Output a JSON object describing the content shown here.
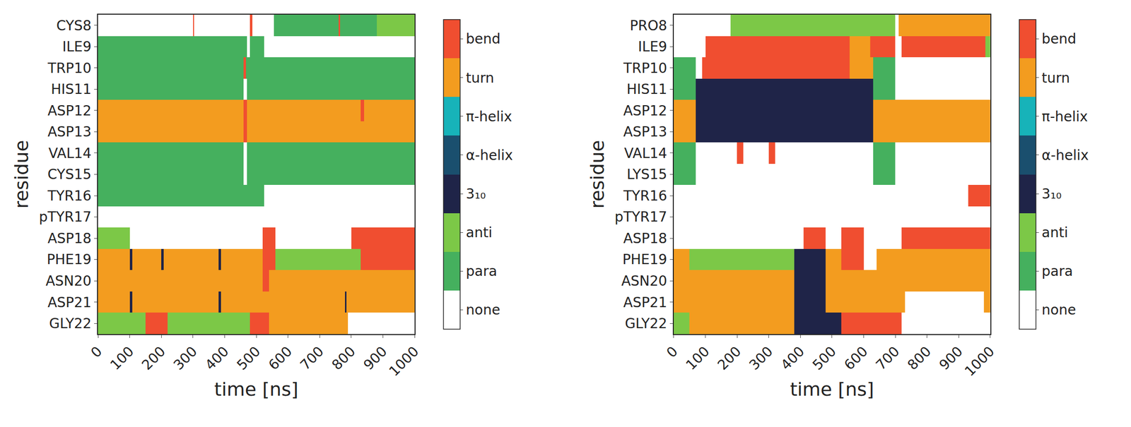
{
  "chart_data": [
    {
      "type": "heatmap",
      "x_label": "time [ns]",
      "y_label": "residue",
      "xlim": [
        0,
        1000
      ],
      "xticks": [
        0,
        100,
        200,
        300,
        400,
        500,
        600,
        700,
        800,
        900,
        1000
      ],
      "colorbar": {
        "labels": [
          "none",
          "para",
          "anti",
          "3₁₀",
          "α-helix",
          "π-helix",
          "turn",
          "bend"
        ],
        "colors": [
          "#ffffff",
          "#45b05e",
          "#7cc847",
          "#1f2448",
          "#1a4f6e",
          "#17b3b9",
          "#f39c1f",
          "#f04e30"
        ]
      },
      "rows": [
        {
          "residue": "CYS8",
          "segments": [
            [
              0,
              300,
              "none"
            ],
            [
              300,
              304,
              "bend"
            ],
            [
              304,
              480,
              "none"
            ],
            [
              480,
              488,
              "bend"
            ],
            [
              488,
              555,
              "none"
            ],
            [
              555,
              760,
              "para"
            ],
            [
              760,
              765,
              "bend"
            ],
            [
              765,
              880,
              "para"
            ],
            [
              880,
              1000,
              "anti"
            ]
          ]
        },
        {
          "residue": "ILE9",
          "segments": [
            [
              0,
              470,
              "para"
            ],
            [
              470,
              480,
              "none"
            ],
            [
              480,
              525,
              "para"
            ],
            [
              525,
              1000,
              "none"
            ]
          ]
        },
        {
          "residue": "TRP10",
          "segments": [
            [
              0,
              460,
              "para"
            ],
            [
              460,
              468,
              "bend"
            ],
            [
              468,
              1000,
              "para"
            ]
          ]
        },
        {
          "residue": "HIS11",
          "segments": [
            [
              0,
              460,
              "para"
            ],
            [
              460,
              470,
              "none"
            ],
            [
              470,
              1000,
              "para"
            ]
          ]
        },
        {
          "residue": "ASP12",
          "segments": [
            [
              0,
              460,
              "turn"
            ],
            [
              460,
              470,
              "bend"
            ],
            [
              470,
              830,
              "turn"
            ],
            [
              830,
              840,
              "bend"
            ],
            [
              840,
              1000,
              "turn"
            ]
          ]
        },
        {
          "residue": "ASP13",
          "segments": [
            [
              0,
              460,
              "turn"
            ],
            [
              460,
              470,
              "bend"
            ],
            [
              470,
              1000,
              "turn"
            ]
          ]
        },
        {
          "residue": "VAL14",
          "segments": [
            [
              0,
              460,
              "para"
            ],
            [
              460,
              470,
              "none"
            ],
            [
              470,
              1000,
              "para"
            ]
          ]
        },
        {
          "residue": "CYS15",
          "segments": [
            [
              0,
              460,
              "para"
            ],
            [
              460,
              470,
              "none"
            ],
            [
              470,
              1000,
              "para"
            ]
          ]
        },
        {
          "residue": "TYR16",
          "segments": [
            [
              0,
              525,
              "para"
            ],
            [
              525,
              1000,
              "none"
            ]
          ]
        },
        {
          "residue": "pTYR17",
          "segments": [
            [
              0,
              1000,
              "none"
            ]
          ]
        },
        {
          "residue": "ASP18",
          "segments": [
            [
              0,
              100,
              "anti"
            ],
            [
              100,
              520,
              "none"
            ],
            [
              520,
              560,
              "bend"
            ],
            [
              560,
              800,
              "none"
            ],
            [
              800,
              1000,
              "bend"
            ]
          ]
        },
        {
          "residue": "PHE19",
          "segments": [
            [
              0,
              100,
              "turn"
            ],
            [
              100,
              108,
              "3₁₀"
            ],
            [
              108,
              200,
              "turn"
            ],
            [
              200,
              208,
              "3₁₀"
            ],
            [
              208,
              380,
              "turn"
            ],
            [
              380,
              388,
              "3₁₀"
            ],
            [
              388,
              520,
              "turn"
            ],
            [
              520,
              560,
              "bend"
            ],
            [
              560,
              830,
              "anti"
            ],
            [
              830,
              1000,
              "bend"
            ]
          ]
        },
        {
          "residue": "ASN20",
          "segments": [
            [
              0,
              520,
              "turn"
            ],
            [
              520,
              540,
              "bend"
            ],
            [
              540,
              1000,
              "turn"
            ]
          ]
        },
        {
          "residue": "ASP21",
          "segments": [
            [
              0,
              100,
              "turn"
            ],
            [
              100,
              108,
              "3₁₀"
            ],
            [
              108,
              380,
              "turn"
            ],
            [
              380,
              388,
              "3₁₀"
            ],
            [
              388,
              780,
              "turn"
            ],
            [
              780,
              785,
              "3₁₀"
            ],
            [
              785,
              1000,
              "turn"
            ]
          ]
        },
        {
          "residue": "GLY22",
          "segments": [
            [
              0,
              150,
              "anti"
            ],
            [
              150,
              220,
              "bend"
            ],
            [
              220,
              480,
              "anti"
            ],
            [
              480,
              540,
              "bend"
            ],
            [
              540,
              790,
              "turn"
            ],
            [
              790,
              1000,
              "none"
            ]
          ]
        }
      ]
    },
    {
      "type": "heatmap",
      "x_label": "time [ns]",
      "y_label": "residue",
      "xlim": [
        0,
        1000
      ],
      "xticks": [
        0,
        100,
        200,
        300,
        400,
        500,
        600,
        700,
        800,
        900,
        1000
      ],
      "colorbar": {
        "labels": [
          "none",
          "para",
          "anti",
          "3₁₀",
          "α-helix",
          "π-helix",
          "turn",
          "bend"
        ],
        "colors": [
          "#ffffff",
          "#45b05e",
          "#7cc847",
          "#1f2448",
          "#1a4f6e",
          "#17b3b9",
          "#f39c1f",
          "#f04e30"
        ]
      },
      "rows": [
        {
          "residue": "PRO8",
          "segments": [
            [
              0,
              180,
              "none"
            ],
            [
              180,
              700,
              "anti"
            ],
            [
              700,
              710,
              "none"
            ],
            [
              710,
              1000,
              "turn"
            ]
          ]
        },
        {
          "residue": "ILE9",
          "segments": [
            [
              0,
              100,
              "none"
            ],
            [
              100,
              555,
              "bend"
            ],
            [
              555,
              620,
              "turn"
            ],
            [
              620,
              700,
              "bend"
            ],
            [
              700,
              720,
              "none"
            ],
            [
              720,
              985,
              "bend"
            ],
            [
              985,
              1000,
              "anti"
            ]
          ]
        },
        {
          "residue": "TRP10",
          "segments": [
            [
              0,
              70,
              "para"
            ],
            [
              70,
              90,
              "none"
            ],
            [
              90,
              555,
              "bend"
            ],
            [
              555,
              630,
              "turn"
            ],
            [
              630,
              700,
              "para"
            ],
            [
              700,
              1000,
              "none"
            ]
          ]
        },
        {
          "residue": "HIS11",
          "segments": [
            [
              0,
              70,
              "para"
            ],
            [
              70,
              630,
              "3₁₀"
            ],
            [
              630,
              700,
              "para"
            ],
            [
              700,
              1000,
              "none"
            ]
          ]
        },
        {
          "residue": "ASP12",
          "segments": [
            [
              0,
              70,
              "turn"
            ],
            [
              70,
              630,
              "3₁₀"
            ],
            [
              630,
              1000,
              "turn"
            ]
          ]
        },
        {
          "residue": "ASP13",
          "segments": [
            [
              0,
              70,
              "turn"
            ],
            [
              70,
              630,
              "3₁₀"
            ],
            [
              630,
              1000,
              "turn"
            ]
          ]
        },
        {
          "residue": "VAL14",
          "segments": [
            [
              0,
              70,
              "para"
            ],
            [
              70,
              200,
              "none"
            ],
            [
              200,
              220,
              "bend"
            ],
            [
              220,
              300,
              "none"
            ],
            [
              300,
              320,
              "bend"
            ],
            [
              320,
              630,
              "none"
            ],
            [
              630,
              700,
              "para"
            ],
            [
              700,
              1000,
              "none"
            ]
          ]
        },
        {
          "residue": "LYS15",
          "segments": [
            [
              0,
              70,
              "para"
            ],
            [
              70,
              630,
              "none"
            ],
            [
              630,
              700,
              "para"
            ],
            [
              700,
              1000,
              "none"
            ]
          ]
        },
        {
          "residue": "TYR16",
          "segments": [
            [
              0,
              930,
              "none"
            ],
            [
              930,
              1000,
              "bend"
            ]
          ]
        },
        {
          "residue": "pTYR17",
          "segments": [
            [
              0,
              1000,
              "none"
            ]
          ]
        },
        {
          "residue": "ASP18",
          "segments": [
            [
              0,
              410,
              "none"
            ],
            [
              410,
              480,
              "bend"
            ],
            [
              480,
              530,
              "none"
            ],
            [
              530,
              600,
              "bend"
            ],
            [
              600,
              720,
              "none"
            ],
            [
              720,
              1000,
              "bend"
            ]
          ]
        },
        {
          "residue": "PHE19",
          "segments": [
            [
              0,
              50,
              "turn"
            ],
            [
              50,
              380,
              "anti"
            ],
            [
              380,
              480,
              "3₁₀"
            ],
            [
              480,
              530,
              "turn"
            ],
            [
              530,
              600,
              "bend"
            ],
            [
              600,
              640,
              "none"
            ],
            [
              640,
              1000,
              "turn"
            ]
          ]
        },
        {
          "residue": "ASN20",
          "segments": [
            [
              0,
              380,
              "turn"
            ],
            [
              380,
              480,
              "3₁₀"
            ],
            [
              480,
              1000,
              "turn"
            ]
          ]
        },
        {
          "residue": "ASP21",
          "segments": [
            [
              0,
              380,
              "turn"
            ],
            [
              380,
              480,
              "3₁₀"
            ],
            [
              480,
              730,
              "turn"
            ],
            [
              730,
              980,
              "none"
            ],
            [
              980,
              1000,
              "turn"
            ]
          ]
        },
        {
          "residue": "GLY22",
          "segments": [
            [
              0,
              50,
              "anti"
            ],
            [
              50,
              380,
              "turn"
            ],
            [
              380,
              530,
              "3₁₀"
            ],
            [
              530,
              720,
              "bend"
            ],
            [
              720,
              1000,
              "none"
            ]
          ]
        }
      ]
    }
  ]
}
